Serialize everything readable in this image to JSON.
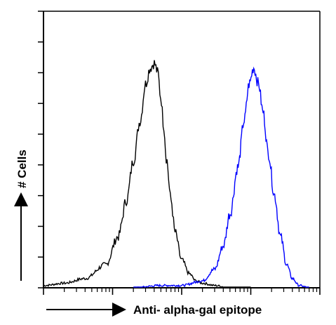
{
  "chart_data": {
    "type": "line",
    "title": "",
    "xlabel": "Anti- alpha-gal epitope",
    "ylabel": "# Cells",
    "grid": false,
    "legend": "none",
    "x_scale": "log",
    "xlim": [
      1,
      10000
    ],
    "ylim": [
      0,
      1
    ],
    "x_tick_labels_shown": false,
    "y_tick_labels_shown": false,
    "series": [
      {
        "color": "#000000",
        "x": [
          1,
          2,
          4,
          8,
          12,
          16,
          20,
          25,
          30,
          35,
          40,
          45,
          50,
          55,
          60,
          70,
          80,
          100,
          130,
          160,
          200,
          300,
          500,
          1000
        ],
        "values": [
          0.01,
          0.02,
          0.04,
          0.1,
          0.22,
          0.38,
          0.55,
          0.72,
          0.88,
          0.95,
          0.97,
          0.93,
          0.82,
          0.7,
          0.56,
          0.38,
          0.24,
          0.12,
          0.06,
          0.03,
          0.02,
          0.01,
          0.0,
          0.0
        ]
      },
      {
        "color": "#0000ff",
        "x": [
          20,
          50,
          100,
          200,
          300,
          400,
          500,
          650,
          800,
          950,
          1100,
          1300,
          1500,
          1800,
          2200,
          2700,
          3300,
          4000,
          5000,
          7000
        ],
        "values": [
          0.0,
          0.01,
          0.01,
          0.03,
          0.08,
          0.18,
          0.32,
          0.52,
          0.72,
          0.88,
          0.95,
          0.88,
          0.76,
          0.58,
          0.4,
          0.22,
          0.1,
          0.04,
          0.01,
          0.0
        ]
      }
    ]
  }
}
